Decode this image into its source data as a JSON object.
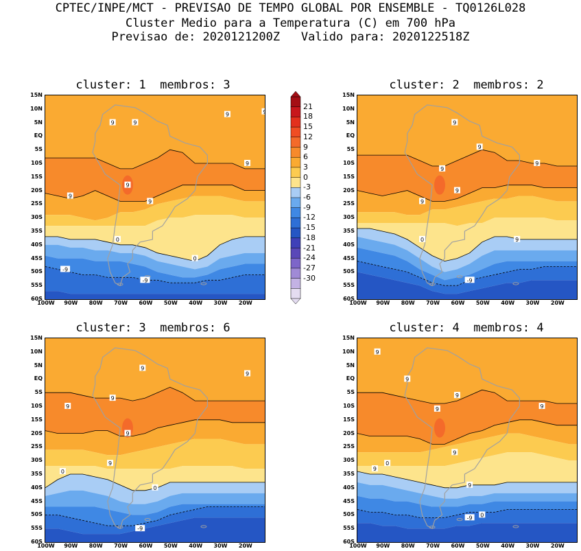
{
  "header": {
    "line1": "CPTEC/INPE/MCT - PREVISAO DE TEMPO GLOBAL POR ENSEMBLE - TQ0126L028",
    "line2": "Cluster Medio para a Temperatura (C) em 700 hPa",
    "line3": "Previsao de: 2020121200Z   Valido para: 2020122518Z"
  },
  "colorbar": {
    "labels": [
      "21",
      "18",
      "15",
      "12",
      "9",
      "6",
      "3",
      "0",
      "-3",
      "-6",
      "-9",
      "-12",
      "-15",
      "-18",
      "-21",
      "-24",
      "-27",
      "-30"
    ],
    "colors": [
      "#a50f15",
      "#c8171c",
      "#e3301d",
      "#f04d23",
      "#f46a2a",
      "#f78a2b",
      "#faaa32",
      "#fccb50",
      "#fde48c",
      "#a9cdf5",
      "#6aaaee",
      "#3f88e4",
      "#2e6fd6",
      "#2556c4",
      "#3f40b8",
      "#5a48b8",
      "#7d66c9",
      "#a08ad6",
      "#c3b2e4",
      "#e4dcf1"
    ]
  },
  "axes": {
    "lat_labels": [
      "15N",
      "10N",
      "5N",
      "EQ",
      "5S",
      "10S",
      "15S",
      "20S",
      "25S",
      "30S",
      "35S",
      "40S",
      "45S",
      "50S",
      "55S",
      "60S"
    ],
    "lon_labels": [
      "100W",
      "90W",
      "80W",
      "70W",
      "60W",
      "50W",
      "40W",
      "30W",
      "20W"
    ]
  },
  "panels": [
    {
      "title": "cluster: 1  membros: 3",
      "contour_labels": [
        "9",
        "9",
        "9",
        "9",
        "9",
        "9",
        "9",
        "9",
        "0",
        "0",
        "-9",
        "-9"
      ]
    },
    {
      "title": "cluster: 2  membros: 2",
      "contour_labels": [
        "9",
        "9",
        "9",
        "9",
        "9",
        "9",
        "9",
        "0",
        "-9"
      ]
    },
    {
      "title": "cluster: 3  membros: 6",
      "contour_labels": [
        "9",
        "9",
        "9",
        "9",
        "9",
        "9",
        "0",
        "0",
        "-9"
      ]
    },
    {
      "title": "cluster: 4  membros: 4",
      "contour_labels": [
        "9",
        "9",
        "9",
        "9",
        "9",
        "9",
        "9",
        "9",
        "0",
        "0",
        "-9"
      ]
    }
  ]
}
